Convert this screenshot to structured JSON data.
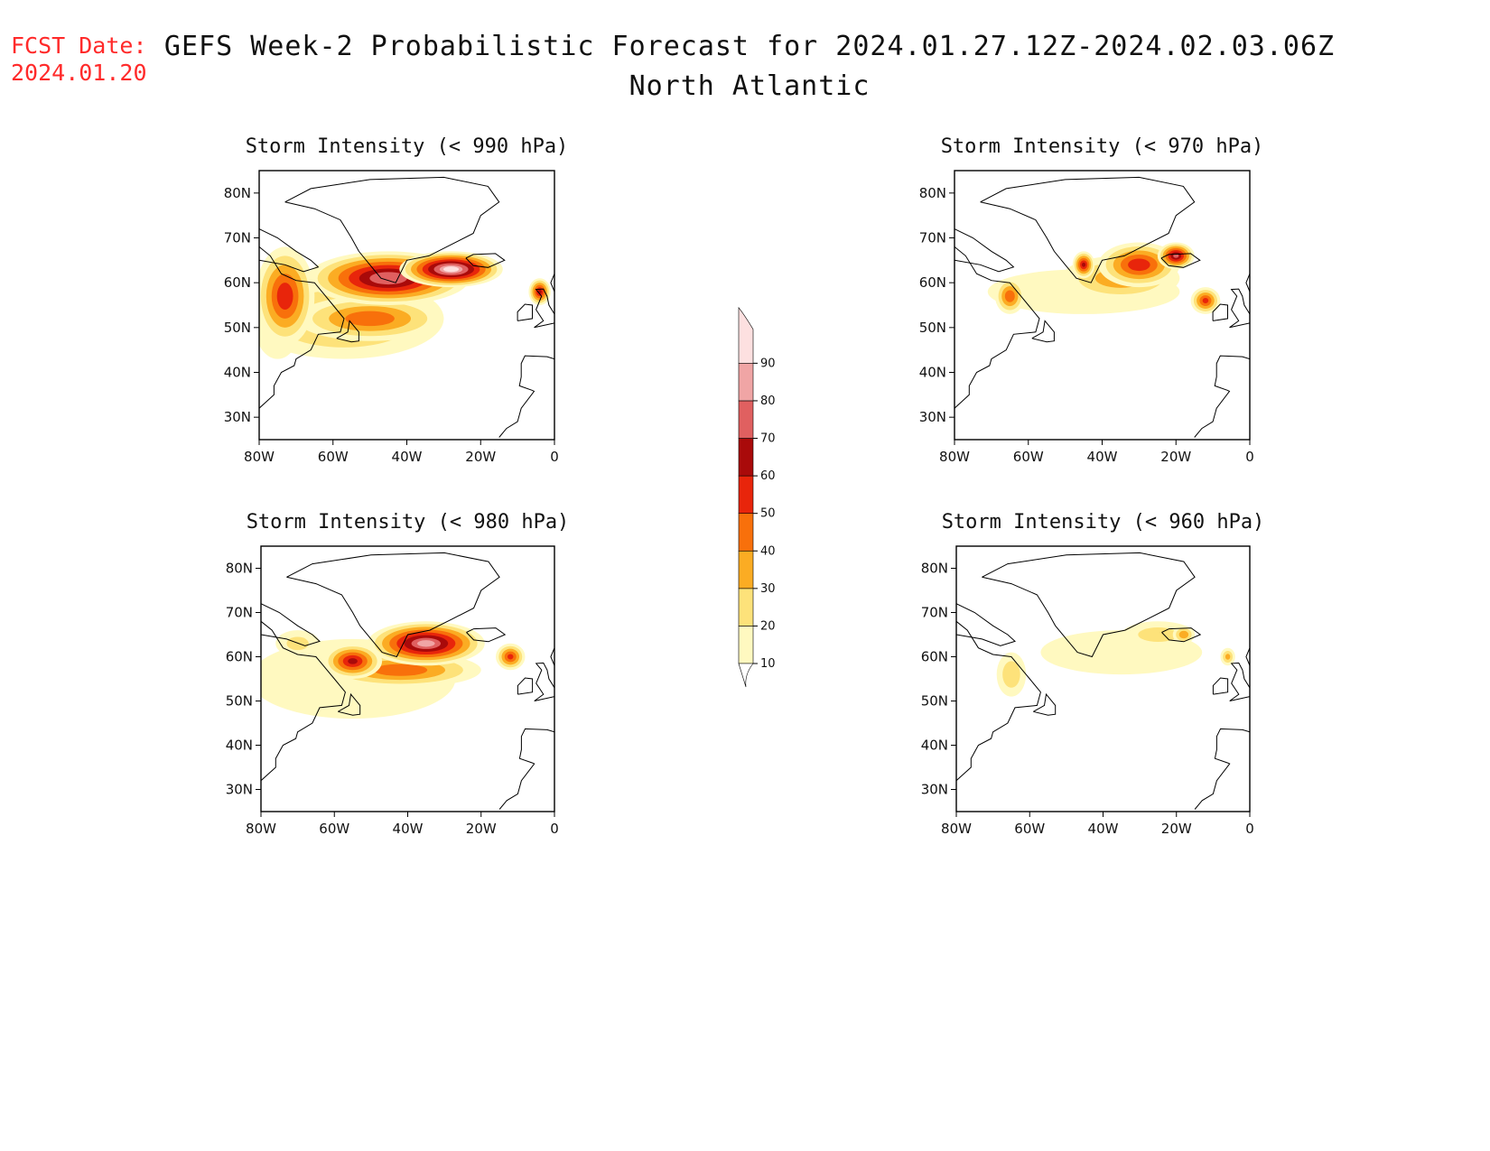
{
  "header": {
    "fcst_label": "FCST Date:",
    "fcst_date": "2024.01.20",
    "title": "GEFS Week-2 Probabilistic Forecast for 2024.01.27.12Z-2024.02.03.06Z",
    "region": "North Atlantic"
  },
  "axes": {
    "lon_labels": [
      "80W",
      "60W",
      "40W",
      "20W",
      "0"
    ],
    "lon_values": [
      -80,
      -60,
      -40,
      -20,
      0
    ],
    "lat_labels": [
      "30N",
      "40N",
      "50N",
      "60N",
      "70N",
      "80N"
    ],
    "lat_values": [
      30,
      40,
      50,
      60,
      70,
      80
    ],
    "lon_range": [
      -80,
      0
    ],
    "lat_range": [
      25,
      85
    ]
  },
  "colorbar": {
    "levels": [
      10,
      20,
      30,
      40,
      50,
      60,
      70,
      80,
      90
    ],
    "colors": [
      "#fff9c0",
      "#fde27a",
      "#fbac23",
      "#f8700b",
      "#e8250b",
      "#a90a0a",
      "#e06060",
      "#f0a5a5",
      "#fde0e0"
    ]
  },
  "panels": [
    {
      "id": "p990",
      "title": "Storm Intensity (< 990 hPa)",
      "threshold_hpa": 990,
      "blobs": [
        {
          "lon": -57,
          "lat": 52,
          "rx": 27,
          "ry": 9,
          "p": 35
        },
        {
          "lon": -73,
          "lat": 57,
          "rx": 8,
          "ry": 11,
          "p": 55
        },
        {
          "lon": -75,
          "lat": 50,
          "rx": 6,
          "ry": 7,
          "p": 25
        },
        {
          "lon": -50,
          "lat": 52,
          "rx": 20,
          "ry": 5,
          "p": 45
        },
        {
          "lon": -55,
          "lat": 53,
          "rx": 16,
          "ry": 4,
          "p": 30
        },
        {
          "lon": -45,
          "lat": 61,
          "rx": 22,
          "ry": 6,
          "p": 78
        },
        {
          "lon": -28,
          "lat": 63,
          "rx": 14,
          "ry": 4,
          "p": 90
        },
        {
          "lon": -4,
          "lat": 58,
          "rx": 3,
          "ry": 3,
          "p": 60
        }
      ]
    },
    {
      "id": "p970",
      "title": "Storm Intensity (< 970 hPa)",
      "threshold_hpa": 970,
      "blobs": [
        {
          "lon": -45,
          "lat": 58,
          "rx": 26,
          "ry": 5,
          "p": 15
        },
        {
          "lon": -35,
          "lat": 61,
          "rx": 16,
          "ry": 5,
          "p": 35
        },
        {
          "lon": -30,
          "lat": 64,
          "rx": 11,
          "ry": 5,
          "p": 55
        },
        {
          "lon": -20,
          "lat": 66,
          "rx": 5,
          "ry": 3,
          "p": 70
        },
        {
          "lon": -65,
          "lat": 57,
          "rx": 4,
          "ry": 4,
          "p": 45
        },
        {
          "lon": -12,
          "lat": 56,
          "rx": 4,
          "ry": 3,
          "p": 50
        },
        {
          "lon": -45,
          "lat": 64,
          "rx": 3,
          "ry": 3,
          "p": 60
        }
      ]
    },
    {
      "id": "p980",
      "title": "Storm Intensity (< 980 hPa)",
      "threshold_hpa": 980,
      "blobs": [
        {
          "lon": -55,
          "lat": 55,
          "rx": 28,
          "ry": 9,
          "p": 15
        },
        {
          "lon": -42,
          "lat": 57,
          "rx": 22,
          "ry": 4,
          "p": 45
        },
        {
          "lon": -35,
          "lat": 63,
          "rx": 16,
          "ry": 5,
          "p": 80
        },
        {
          "lon": -70,
          "lat": 63,
          "rx": 6,
          "ry": 3,
          "p": 20
        },
        {
          "lon": -12,
          "lat": 60,
          "rx": 4,
          "ry": 3,
          "p": 50
        },
        {
          "lon": -55,
          "lat": 59,
          "rx": 8,
          "ry": 4,
          "p": 60
        }
      ]
    },
    {
      "id": "p960",
      "title": "Storm Intensity (< 960 hPa)",
      "threshold_hpa": 960,
      "blobs": [
        {
          "lon": -35,
          "lat": 61,
          "rx": 22,
          "ry": 5,
          "p": 12
        },
        {
          "lon": -25,
          "lat": 65,
          "rx": 10,
          "ry": 3,
          "p": 22
        },
        {
          "lon": -65,
          "lat": 56,
          "rx": 4,
          "ry": 5,
          "p": 25
        },
        {
          "lon": -18,
          "lat": 65,
          "rx": 3,
          "ry": 2,
          "p": 35
        },
        {
          "lon": -6,
          "lat": 60,
          "rx": 2,
          "ry": 2,
          "p": 30
        }
      ]
    }
  ]
}
